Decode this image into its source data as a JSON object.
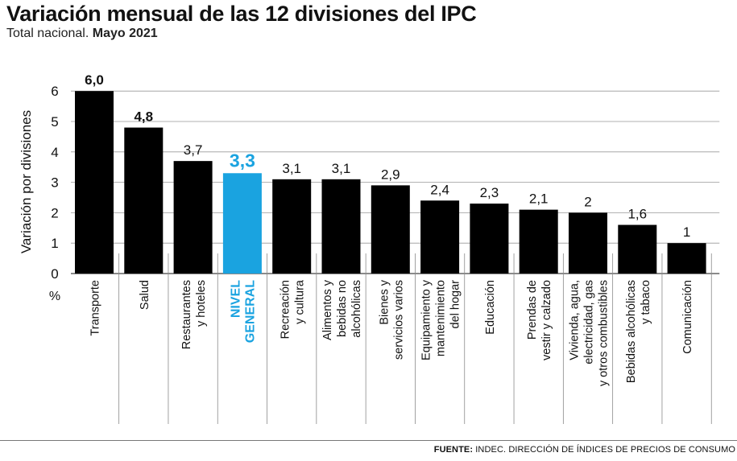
{
  "title": "Variación mensual de las 12 divisiones del IPC",
  "subtitle_prefix": "Total nacional.",
  "subtitle_date": "Mayo 2021",
  "source_label": "FUENTE:",
  "source_text": "INDEC. DIRECCIÓN DE ÍNDICES DE PRECIOS DE CONSUMO",
  "colors": {
    "bar": "#000000",
    "highlight": "#1aa3e0",
    "grid": "#999999"
  },
  "chart_data": {
    "type": "bar",
    "ylabel": "Variación por divisiones",
    "unit_label": "%",
    "ylim": [
      0,
      6
    ],
    "yticks": [
      0,
      1,
      2,
      3,
      4,
      5,
      6
    ],
    "grid": true,
    "highlight_index": 3,
    "bold_value_indices": [
      0,
      1,
      3
    ],
    "categories": [
      [
        "Transporte"
      ],
      [
        "Salud"
      ],
      [
        "Restaurantes",
        "y hoteles"
      ],
      [
        "NIVEL",
        "GENERAL"
      ],
      [
        "Recreación",
        "y cultura"
      ],
      [
        "Alimentos y",
        "bebidas no",
        "alcohólicas"
      ],
      [
        "Bienes y",
        "servicios varios"
      ],
      [
        "Equipamiento y",
        "mantenimiento",
        "del hogar"
      ],
      [
        "Educación"
      ],
      [
        "Prendas de",
        "vestir y calzado"
      ],
      [
        "Vivienda, agua,",
        "electricidad, gas",
        "y otros combustibles"
      ],
      [
        "Bebidas alcohólicas",
        "y tabaco"
      ],
      [
        "Comunicación"
      ]
    ],
    "values": [
      6.0,
      4.8,
      3.7,
      3.3,
      3.1,
      3.1,
      2.9,
      2.4,
      2.3,
      2.1,
      2,
      1.6,
      1
    ],
    "value_labels": [
      "6,0",
      "4,8",
      "3,7",
      "3,3",
      "3,1",
      "3,1",
      "2,9",
      "2,4",
      "2,3",
      "2,1",
      "2",
      "1,6",
      "1"
    ]
  }
}
